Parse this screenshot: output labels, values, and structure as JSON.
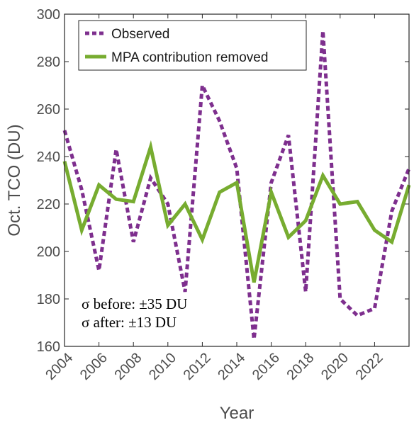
{
  "chart_data": {
    "type": "line",
    "title": "",
    "xlabel": "Year",
    "ylabel": "Oct. TCO (DU)",
    "xlim": [
      2004,
      2024
    ],
    "ylim": [
      160,
      300
    ],
    "xticks": [
      2004,
      2006,
      2008,
      2010,
      2012,
      2014,
      2016,
      2018,
      2020,
      2022
    ],
    "yticks": [
      160,
      180,
      200,
      220,
      240,
      260,
      280,
      300
    ],
    "x": [
      2004,
      2005,
      2006,
      2007,
      2008,
      2009,
      2010,
      2011,
      2012,
      2013,
      2014,
      2015,
      2016,
      2017,
      2018,
      2019,
      2020,
      2021,
      2022,
      2023,
      2024
    ],
    "series": [
      {
        "name": "Observed",
        "color": "#7e2f8e",
        "style": "dotted",
        "values": [
          251,
          226,
          192,
          243,
          204,
          231,
          220,
          183,
          270,
          255,
          235,
          163,
          229,
          249,
          183,
          293,
          180,
          173,
          176,
          217,
          235
        ]
      },
      {
        "name": "MPA contribution removed",
        "color": "#77ac30",
        "style": "solid",
        "values": [
          238,
          209,
          228,
          222,
          221,
          244,
          211,
          220,
          205,
          225,
          229,
          187,
          225,
          206,
          213,
          232,
          220,
          221,
          209,
          204,
          228
        ]
      }
    ],
    "legend_position": "top-left",
    "grid": false,
    "annotations": [
      "σ before: ±35 DU",
      "σ after: ±13 DU"
    ]
  }
}
